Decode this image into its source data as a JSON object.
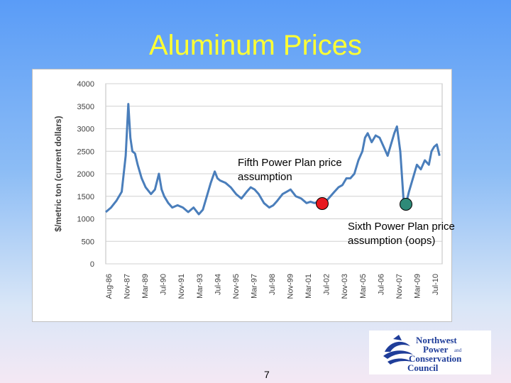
{
  "slide": {
    "title": "Aluminum Prices",
    "page_number": "7"
  },
  "annotations": {
    "fifth_plan": [
      "Fifth Power Plan price",
      "assumption"
    ],
    "sixth_plan": [
      "Sixth Power Plan price",
      "assumption (oops)"
    ]
  },
  "markers": {
    "fifth_color": "#e8191f",
    "sixth_color": "#2e8a78"
  },
  "logo": {
    "lines": [
      "Northwest",
      "Power",
      "and",
      "Conservation",
      "Council"
    ]
  },
  "colors": {
    "line": "#4a7ebb",
    "title": "#ffff33"
  },
  "chart_data": {
    "type": "line",
    "ylabel": "$/metric ton (current dollars)",
    "xlabel": "",
    "ylim": [
      0,
      4000
    ],
    "yticks": [
      0,
      500,
      1000,
      1500,
      2000,
      2500,
      3000,
      3500,
      4000
    ],
    "xticks": [
      "Aug-86",
      "Nov-87",
      "Mar-89",
      "Jul-90",
      "Nov-91",
      "Mar-93",
      "Jul-94",
      "Nov-95",
      "Mar-97",
      "Jul-98",
      "Nov-99",
      "Mar-01",
      "Jul-02",
      "Nov-03",
      "Mar-05",
      "Jul-06",
      "Nov-07",
      "Mar-09",
      "Jul-10"
    ],
    "grid": true,
    "legend": "none",
    "series": [
      {
        "x": [
          1986.6,
          1987.0,
          1987.4,
          1987.8,
          1988.1,
          1988.3,
          1988.45,
          1988.6,
          1988.8,
          1989.0,
          1989.3,
          1989.6,
          1990.0,
          1990.3,
          1990.6,
          1990.8,
          1991.0,
          1991.3,
          1991.6,
          1992.0,
          1992.4,
          1992.8,
          1993.2,
          1993.6,
          1993.9,
          1994.2,
          1994.5,
          1994.8,
          1995.0,
          1995.2,
          1995.6,
          1996.0,
          1996.4,
          1996.8,
          1997.2,
          1997.5,
          1997.8,
          1998.1,
          1998.5,
          1998.9,
          1999.2,
          1999.5,
          1999.9,
          2000.2,
          2000.5,
          2000.9,
          2001.3,
          2001.7,
          2002.0,
          2002.3,
          2002.6,
          2002.9,
          2003.2,
          2003.5,
          2003.8,
          2004.1,
          2004.4,
          2004.7,
          2005.0,
          2005.3,
          2005.6,
          2005.9,
          2006.1,
          2006.3,
          2006.6,
          2006.9,
          2007.2,
          2007.5,
          2007.8,
          2008.0,
          2008.3,
          2008.5,
          2008.75,
          2009.0,
          2009.2,
          2009.4,
          2009.7,
          2010.0,
          2010.3,
          2010.6,
          2010.9,
          2011.1,
          2011.3,
          2011.5,
          2011.7
        ],
        "y": [
          1150,
          1250,
          1400,
          1600,
          2400,
          3550,
          2800,
          2500,
          2450,
          2200,
          1900,
          1700,
          1550,
          1650,
          2000,
          1650,
          1500,
          1350,
          1250,
          1300,
          1250,
          1150,
          1250,
          1100,
          1200,
          1500,
          1800,
          2050,
          1900,
          1850,
          1800,
          1700,
          1550,
          1450,
          1600,
          1700,
          1650,
          1550,
          1350,
          1250,
          1300,
          1400,
          1550,
          1600,
          1650,
          1500,
          1450,
          1350,
          1380,
          1350,
          1380,
          1420,
          1400,
          1500,
          1600,
          1700,
          1750,
          1900,
          1900,
          2000,
          2300,
          2500,
          2800,
          2900,
          2700,
          2850,
          2800,
          2600,
          2400,
          2600,
          2900,
          3050,
          2500,
          1400,
          1350,
          1600,
          1900,
          2200,
          2100,
          2300,
          2200,
          2500,
          2600,
          2650,
          2400
        ]
      }
    ]
  }
}
